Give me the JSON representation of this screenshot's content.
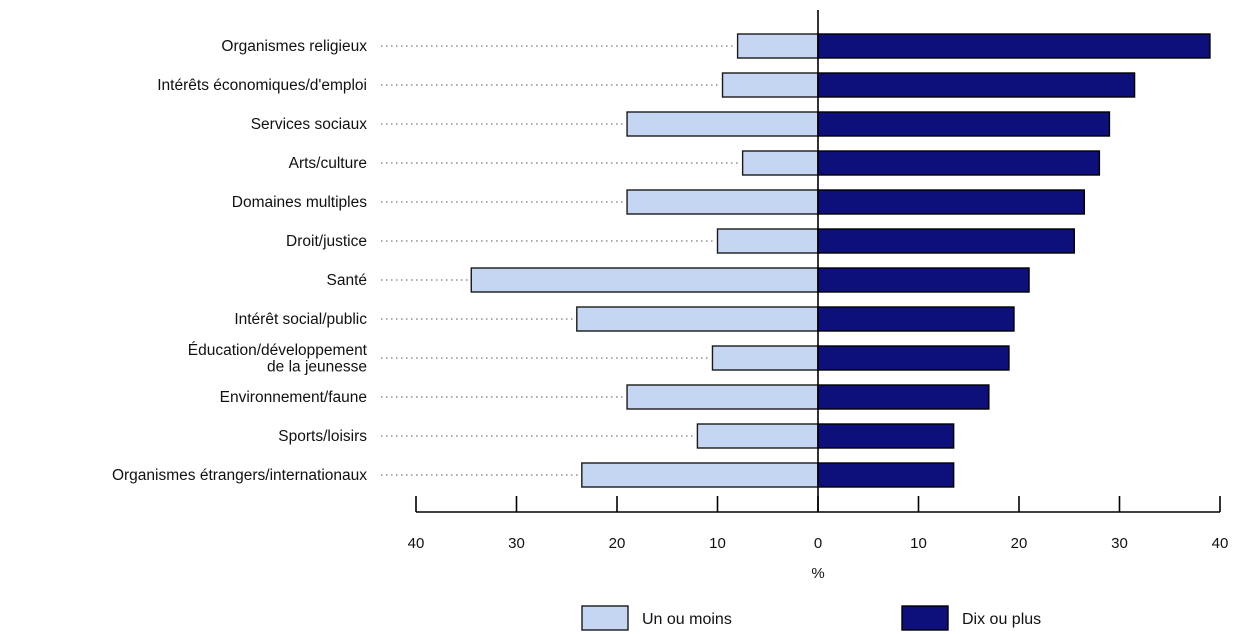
{
  "chart_data": {
    "type": "bar",
    "orientation": "horizontal-diverging",
    "categories": [
      "Organismes religieux",
      "Intérêts économiques/d'emploi",
      "Services sociaux",
      "Arts/culture",
      "Domaines multiples",
      "Droit/justice",
      "Santé",
      "Intérêt social/public",
      "Éducation/développement de la jeunesse",
      "Environnement/faune",
      "Sports/loisirs",
      "Organismes étrangers/internationaux"
    ],
    "category_lines": [
      [
        "Organismes religieux"
      ],
      [
        "Intérêts économiques/d'emploi"
      ],
      [
        "Services sociaux"
      ],
      [
        "Arts/culture"
      ],
      [
        "Domaines multiples"
      ],
      [
        "Droit/justice"
      ],
      [
        "Santé"
      ],
      [
        "Intérêt social/public"
      ],
      [
        "Éducation/développement",
        "de la jeunesse"
      ],
      [
        "Environnement/faune"
      ],
      [
        "Sports/loisirs"
      ],
      [
        "Organismes étrangers/internationaux"
      ]
    ],
    "series": [
      {
        "name": "Un ou moins",
        "color": "#c5d6f2",
        "side": "left",
        "values": [
          8,
          9.5,
          19,
          7.5,
          19,
          10,
          34.5,
          24,
          10.5,
          19,
          12,
          23.5
        ]
      },
      {
        "name": "Dix ou plus",
        "color": "#0d0f7a",
        "side": "right",
        "values": [
          39,
          31.5,
          29,
          28,
          26.5,
          25.5,
          21,
          19.5,
          19,
          17,
          13.5,
          13.5
        ]
      }
    ],
    "xlim": [
      -40,
      40
    ],
    "x_ticks": [
      -40,
      -30,
      -20,
      -10,
      0,
      10,
      20,
      30,
      40
    ],
    "x_tick_labels": [
      "40",
      "30",
      "20",
      "10",
      "0",
      "10",
      "20",
      "30",
      "40"
    ],
    "xlabel": "%",
    "grid": false,
    "legend_position": "bottom-center"
  }
}
